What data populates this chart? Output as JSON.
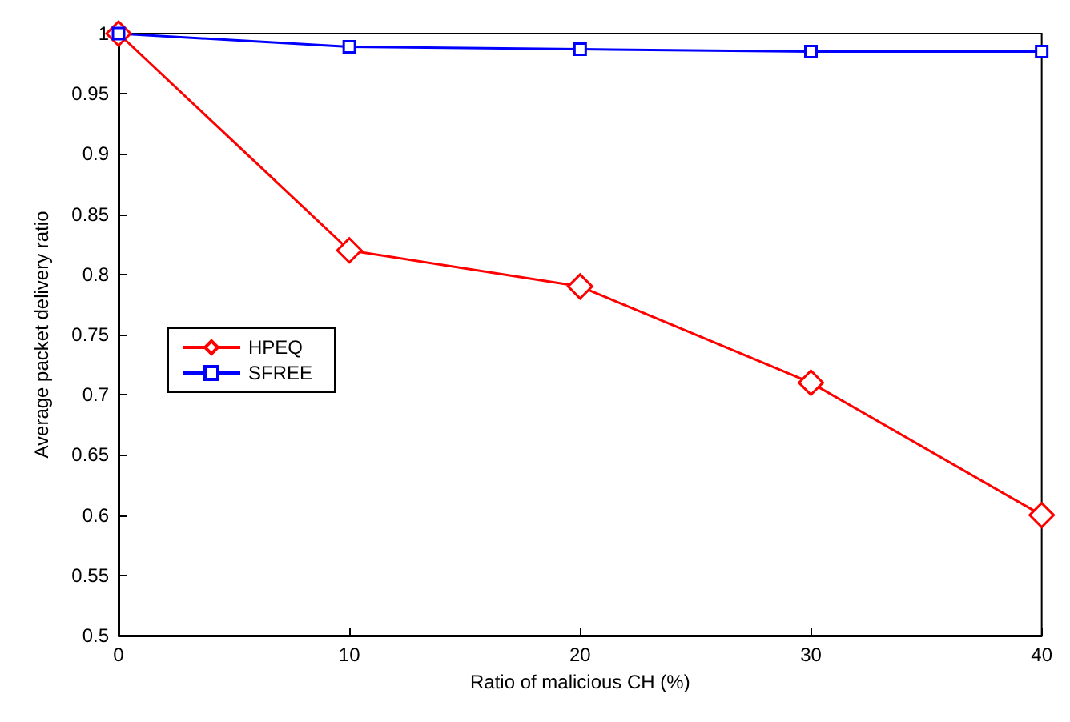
{
  "chart_data": {
    "type": "line",
    "xlabel": "Ratio of malicious CH (%)",
    "ylabel": "Average packet delivery ratio",
    "x": [
      0,
      10,
      20,
      30,
      40
    ],
    "xlim": [
      0,
      40
    ],
    "xticks": [
      0,
      10,
      20,
      30,
      40
    ],
    "ylim": [
      0.5,
      1
    ],
    "yticks": [
      0.5,
      0.55,
      0.6,
      0.65,
      0.7,
      0.75,
      0.8,
      0.85,
      0.9,
      0.95,
      1
    ],
    "grid": false,
    "legend": "left",
    "line_style": "solid",
    "series": [
      {
        "name": "HPEQ",
        "color": "#ff0000",
        "marker": "diamond",
        "values": [
          1,
          0.82,
          0.79,
          0.71,
          0.6
        ]
      },
      {
        "name": "SFREE",
        "color": "#0000ff",
        "marker": "square",
        "values": [
          1,
          0.989,
          0.987,
          0.985,
          0.985
        ]
      }
    ]
  }
}
